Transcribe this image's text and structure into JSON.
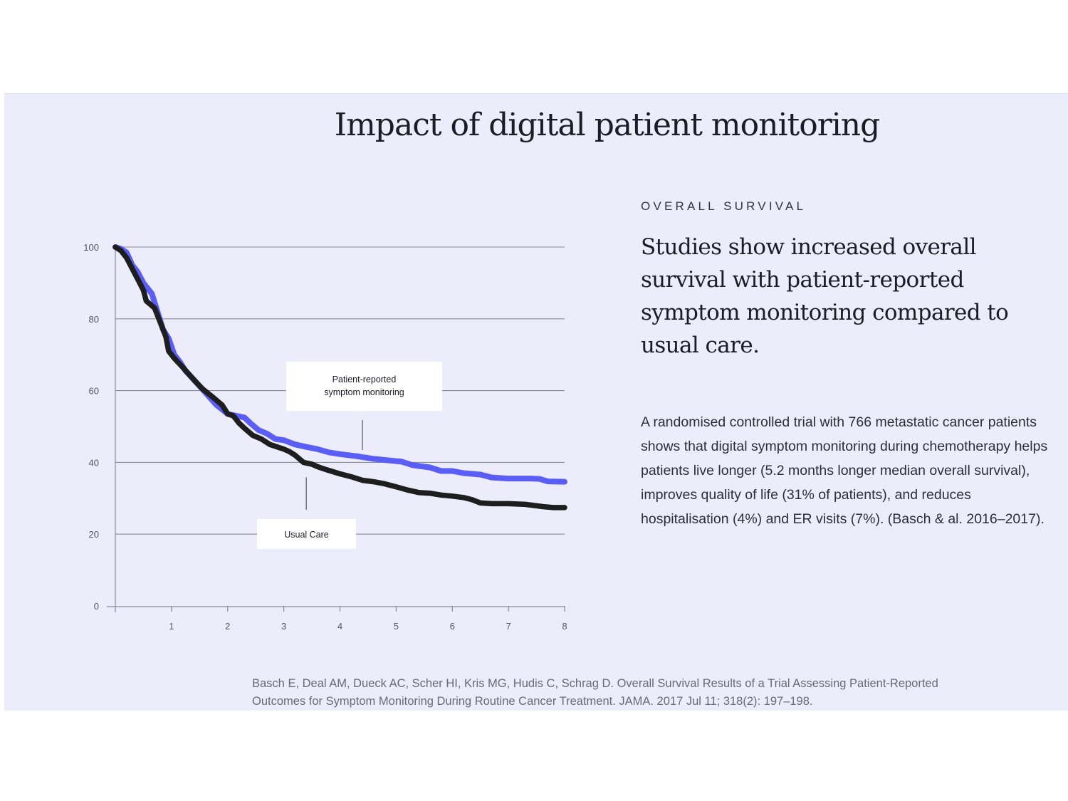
{
  "header": {
    "title": "Impact of digital patient monitoring"
  },
  "aside": {
    "eyebrow": "OVERALL SURVIVAL",
    "headline": "Studies show increased overall survival with patient-reported symptom monitoring compared to usual care.",
    "body": "A randomised controlled trial with 766 metastatic cancer patients shows that digital symptom monitoring during chemotherapy helps patients live longer (5.2 months longer median overall survival), improves quality of life (31% of patients), and reduces hospitalisation (4%) and ER visits (7%). (Basch & al. 2016–2017).",
    "citation": "Basch E, Deal AM, Dueck AC, Scher HI, Kris MG, Hudis C, Schrag D. Overall Survival Results of a Trial Assessing Patient-Reported Outcomes for Symptom Monitoring During Routine Cancer Treatment. JAMA. 2017 Jul 11; 318(2): 197–198."
  },
  "colors": {
    "panel_bg": "#ececfb",
    "monitoring_series": "#5b5ef5",
    "usual_care_series": "#1e1e1e",
    "grid": "#8a8a92"
  },
  "chart_data": {
    "type": "line",
    "title": "",
    "xlabel": "",
    "ylabel": "",
    "xlim": [
      0,
      8
    ],
    "ylim": [
      0,
      100
    ],
    "xticks": [
      "1",
      "2",
      "3",
      "4",
      "5",
      "6",
      "7",
      "8"
    ],
    "yticks": [
      "0",
      "20",
      "40",
      "60",
      "80",
      "100"
    ],
    "grid": true,
    "series": [
      {
        "name": "Patient-reported symptom monitoring",
        "points": [
          [
            0,
            100
          ],
          [
            0.1,
            99.5
          ],
          [
            0.2,
            98.5
          ],
          [
            0.3,
            95
          ],
          [
            0.4,
            93
          ],
          [
            0.5,
            90
          ],
          [
            0.65,
            87
          ],
          [
            0.75,
            82
          ],
          [
            0.85,
            77
          ],
          [
            0.95,
            74.5
          ],
          [
            1.05,
            70
          ],
          [
            1.15,
            68
          ],
          [
            1.25,
            65.5
          ],
          [
            1.4,
            63
          ],
          [
            1.6,
            59.5
          ],
          [
            1.8,
            56
          ],
          [
            2.0,
            53.5
          ],
          [
            2.15,
            53
          ],
          [
            2.3,
            52.5
          ],
          [
            2.4,
            51
          ],
          [
            2.55,
            49
          ],
          [
            2.7,
            48
          ],
          [
            2.85,
            46.5
          ],
          [
            3.0,
            46.2
          ],
          [
            3.2,
            45
          ],
          [
            3.4,
            44.3
          ],
          [
            3.6,
            43.7
          ],
          [
            3.8,
            42.8
          ],
          [
            4.0,
            42.3
          ],
          [
            4.3,
            41.7
          ],
          [
            4.6,
            41
          ],
          [
            4.9,
            40.5
          ],
          [
            5.1,
            40.2
          ],
          [
            5.3,
            39.2
          ],
          [
            5.6,
            38.6
          ],
          [
            5.8,
            37.6
          ],
          [
            6.0,
            37.6
          ],
          [
            6.2,
            37
          ],
          [
            6.5,
            36.6
          ],
          [
            6.7,
            35.8
          ],
          [
            7.0,
            35.5
          ],
          [
            7.4,
            35.5
          ],
          [
            7.55,
            35.4
          ],
          [
            7.7,
            34.7
          ],
          [
            8.0,
            34.6
          ]
        ]
      },
      {
        "name": "Usual Care",
        "points": [
          [
            0,
            100
          ],
          [
            0.1,
            99
          ],
          [
            0.2,
            97
          ],
          [
            0.3,
            94
          ],
          [
            0.4,
            91
          ],
          [
            0.5,
            88
          ],
          [
            0.55,
            85
          ],
          [
            0.7,
            83
          ],
          [
            0.8,
            79
          ],
          [
            0.85,
            77
          ],
          [
            0.9,
            75
          ],
          [
            0.95,
            71
          ],
          [
            1.05,
            69
          ],
          [
            1.2,
            66.5
          ],
          [
            1.4,
            63
          ],
          [
            1.55,
            60.5
          ],
          [
            1.75,
            58
          ],
          [
            1.9,
            56
          ],
          [
            2.0,
            53.5
          ],
          [
            2.1,
            53
          ],
          [
            2.2,
            51
          ],
          [
            2.3,
            49.5
          ],
          [
            2.45,
            47.5
          ],
          [
            2.6,
            46.5
          ],
          [
            2.75,
            45
          ],
          [
            3.0,
            43.7
          ],
          [
            3.1,
            43
          ],
          [
            3.2,
            42
          ],
          [
            3.35,
            40
          ],
          [
            3.5,
            39.5
          ],
          [
            3.6,
            38.8
          ],
          [
            3.75,
            38
          ],
          [
            4.0,
            36.8
          ],
          [
            4.2,
            36
          ],
          [
            4.4,
            35
          ],
          [
            4.6,
            34.6
          ],
          [
            4.8,
            34
          ],
          [
            5.0,
            33.2
          ],
          [
            5.2,
            32.3
          ],
          [
            5.4,
            31.6
          ],
          [
            5.6,
            31.4
          ],
          [
            5.8,
            30.9
          ],
          [
            6.0,
            30.6
          ],
          [
            6.2,
            30.2
          ],
          [
            6.35,
            29.6
          ],
          [
            6.5,
            28.7
          ],
          [
            6.7,
            28.5
          ],
          [
            7.0,
            28.5
          ],
          [
            7.3,
            28.3
          ],
          [
            7.6,
            27.7
          ],
          [
            7.8,
            27.4
          ],
          [
            8.0,
            27.4
          ]
        ]
      }
    ],
    "annotations": [
      {
        "id": "monitoring",
        "lines": [
          "Patient-reported",
          "symptom monitoring"
        ],
        "anchor_x": 4.4,
        "series": "Patient-reported symptom monitoring"
      },
      {
        "id": "usual",
        "lines": [
          "Usual Care"
        ],
        "anchor_x": 3.4,
        "series": "Usual Care"
      }
    ]
  }
}
